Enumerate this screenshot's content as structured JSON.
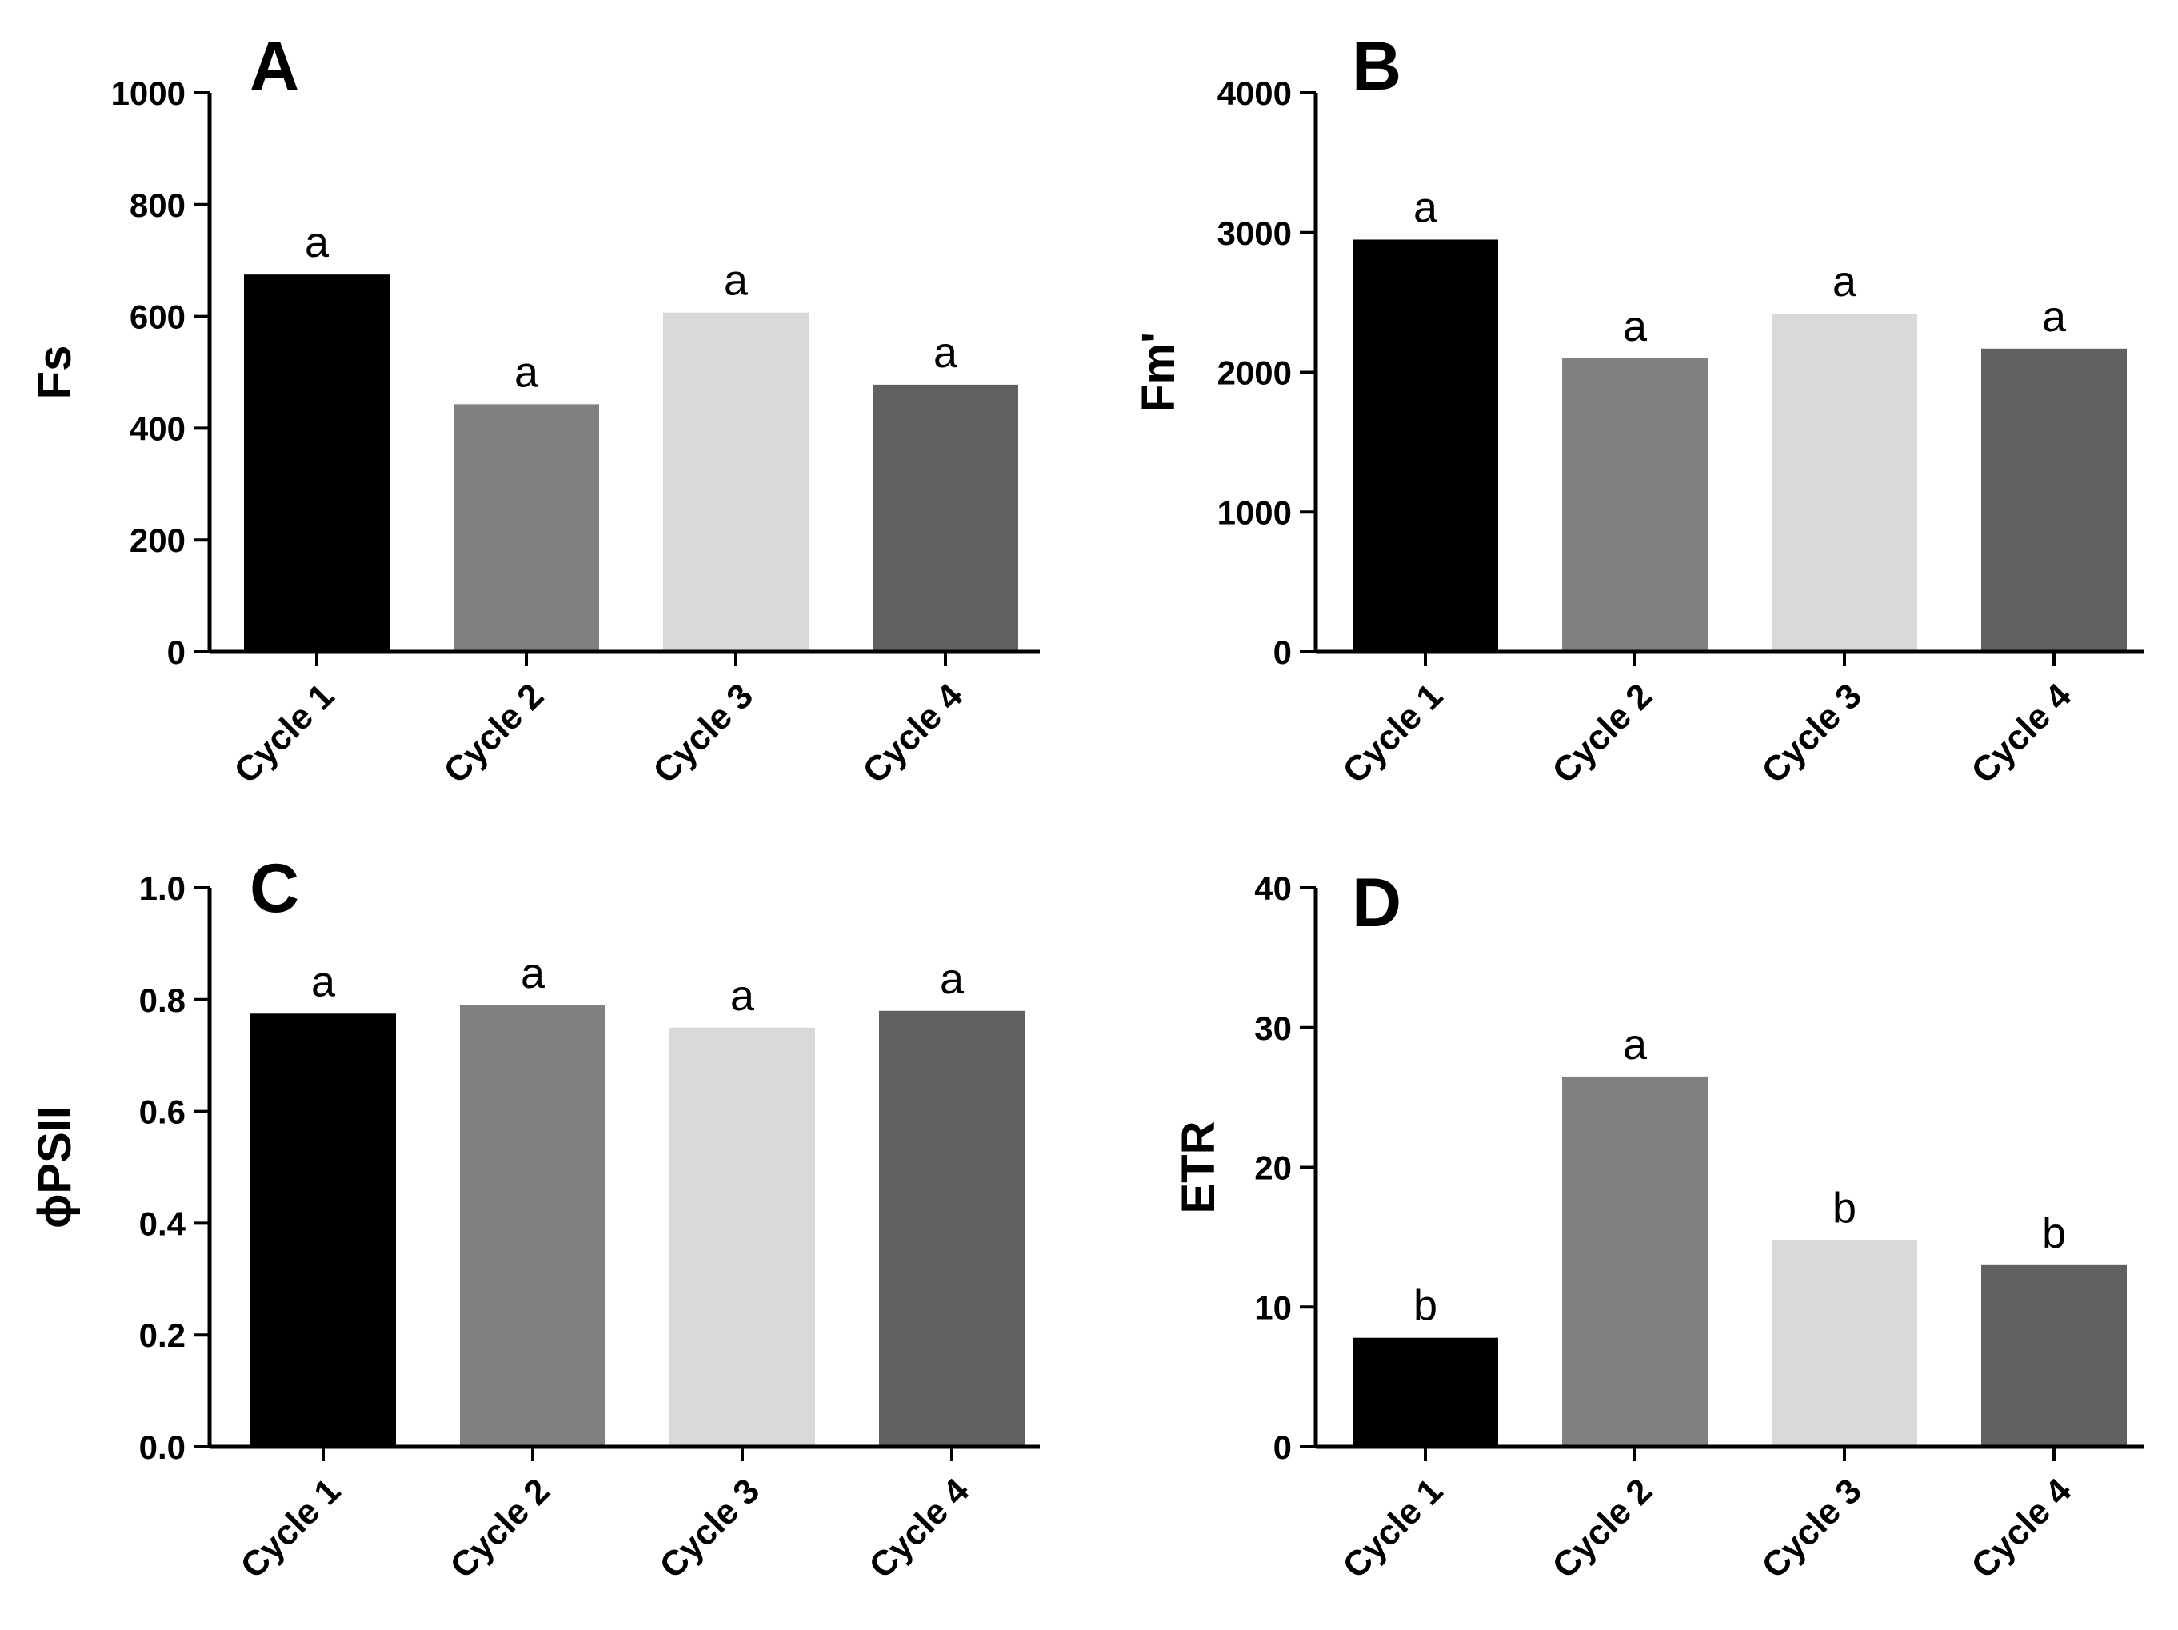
{
  "chart_data": [
    {
      "type": "bar",
      "panel": "A",
      "ylabel": "Fs",
      "categories": [
        "Cycle 1",
        "Cycle 2",
        "Cycle 3",
        "Cycle 4"
      ],
      "values": [
        675,
        443,
        607,
        478
      ],
      "significance": [
        "a",
        "a",
        "a",
        "a"
      ],
      "ylim": [
        0,
        1000
      ],
      "yticks": [
        "0",
        "200",
        "400",
        "600",
        "800",
        "1000"
      ],
      "colors": [
        "#000000",
        "#808080",
        "#d9d9d9",
        "#616161"
      ]
    },
    {
      "type": "bar",
      "panel": "B",
      "ylabel": "Fm'",
      "categories": [
        "Cycle 1",
        "Cycle 2",
        "Cycle 3",
        "Cycle 4"
      ],
      "values": [
        2950,
        2100,
        2420,
        2170
      ],
      "significance": [
        "a",
        "a",
        "a",
        "a"
      ],
      "ylim": [
        0,
        4000
      ],
      "yticks": [
        "0",
        "1000",
        "2000",
        "3000",
        "4000"
      ],
      "colors": [
        "#000000",
        "#808080",
        "#d9d9d9",
        "#616161"
      ]
    },
    {
      "type": "bar",
      "panel": "C",
      "ylabel": "ϕPSII",
      "categories": [
        "Cycle 1",
        "Cycle 2",
        "Cycle 3",
        "Cycle 4"
      ],
      "values": [
        0.775,
        0.79,
        0.75,
        0.78
      ],
      "significance": [
        "a",
        "a",
        "a",
        "a"
      ],
      "ylim": [
        0,
        1
      ],
      "yticks": [
        "0.0",
        "0.2",
        "0.4",
        "0.6",
        "0.8",
        "1.0"
      ],
      "colors": [
        "#000000",
        "#808080",
        "#d9d9d9",
        "#616161"
      ]
    },
    {
      "type": "bar",
      "panel": "D",
      "ylabel": "ETR",
      "categories": [
        "Cycle 1",
        "Cycle 2",
        "Cycle 3",
        "Cycle 4"
      ],
      "values": [
        7.8,
        26.5,
        14.8,
        13.0
      ],
      "significance": [
        "b",
        "a",
        "b",
        "b"
      ],
      "ylim": [
        0,
        40
      ],
      "yticks": [
        "0",
        "10",
        "20",
        "30",
        "40"
      ],
      "colors": [
        "#000000",
        "#808080",
        "#d9d9d9",
        "#616161"
      ]
    }
  ]
}
